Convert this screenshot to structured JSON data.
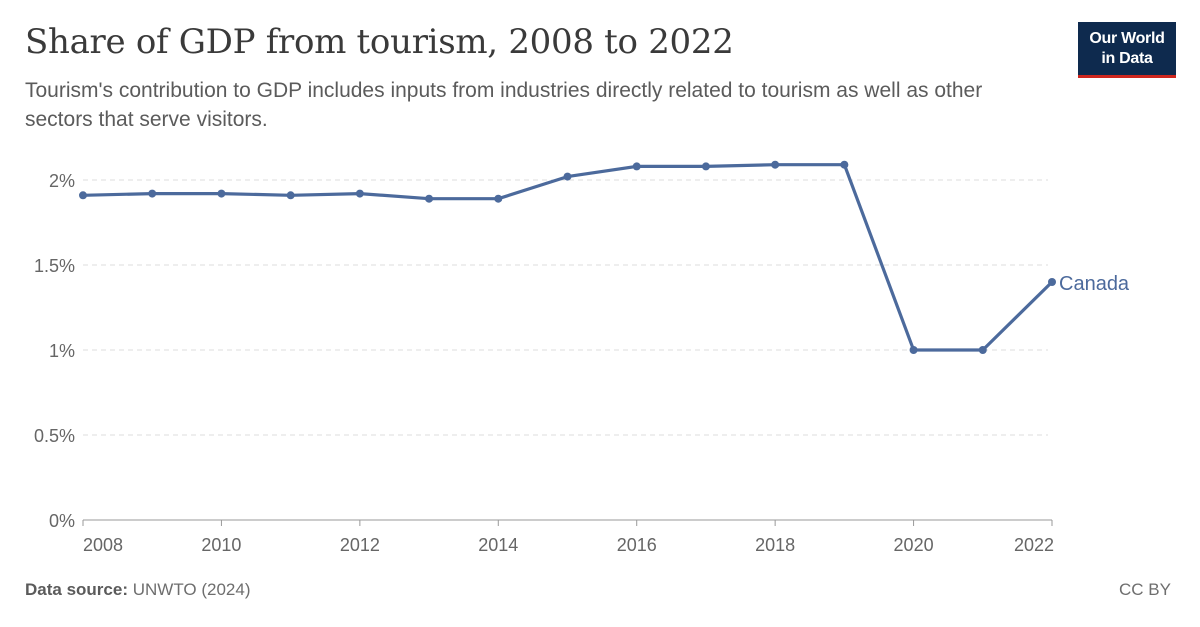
{
  "header": {
    "title": "Share of GDP from tourism, 2008 to 2022",
    "subtitle": "Tourism's contribution to GDP includes inputs from industries directly related to tourism as well as other sectors that serve visitors."
  },
  "logo": {
    "line1": "Our World",
    "line2": "in Data"
  },
  "footer": {
    "source_label": "Data source:",
    "source_value": "UNWTO (2024)",
    "license": "CC BY"
  },
  "colors": {
    "series": "#4c6a9c",
    "grid": "#dddddd",
    "axis": "#999999",
    "tick_text": "#666666",
    "logo_bg": "#0e2a4e",
    "logo_accent": "#ce261e"
  },
  "chart_data": {
    "type": "line",
    "title": "Share of GDP from tourism, 2008 to 2022",
    "xlabel": "",
    "ylabel": "",
    "xlim": [
      2008,
      2022
    ],
    "ylim": [
      0,
      2
    ],
    "x_ticks": [
      2008,
      2010,
      2012,
      2014,
      2016,
      2018,
      2020,
      2022
    ],
    "y_ticks": [
      0,
      0.5,
      1,
      1.5,
      2
    ],
    "y_tick_labels": [
      "0%",
      "0.5%",
      "1%",
      "1.5%",
      "2%"
    ],
    "grid": "horizontal dashed",
    "legend": "inline label at line end",
    "series": [
      {
        "name": "Canada",
        "x": [
          2008,
          2009,
          2010,
          2011,
          2012,
          2013,
          2014,
          2015,
          2016,
          2017,
          2018,
          2019,
          2020,
          2021,
          2022
        ],
        "values": [
          1.91,
          1.92,
          1.92,
          1.91,
          1.92,
          1.89,
          1.89,
          2.02,
          2.08,
          2.08,
          2.09,
          2.09,
          1.0,
          1.0,
          1.4
        ]
      }
    ]
  }
}
